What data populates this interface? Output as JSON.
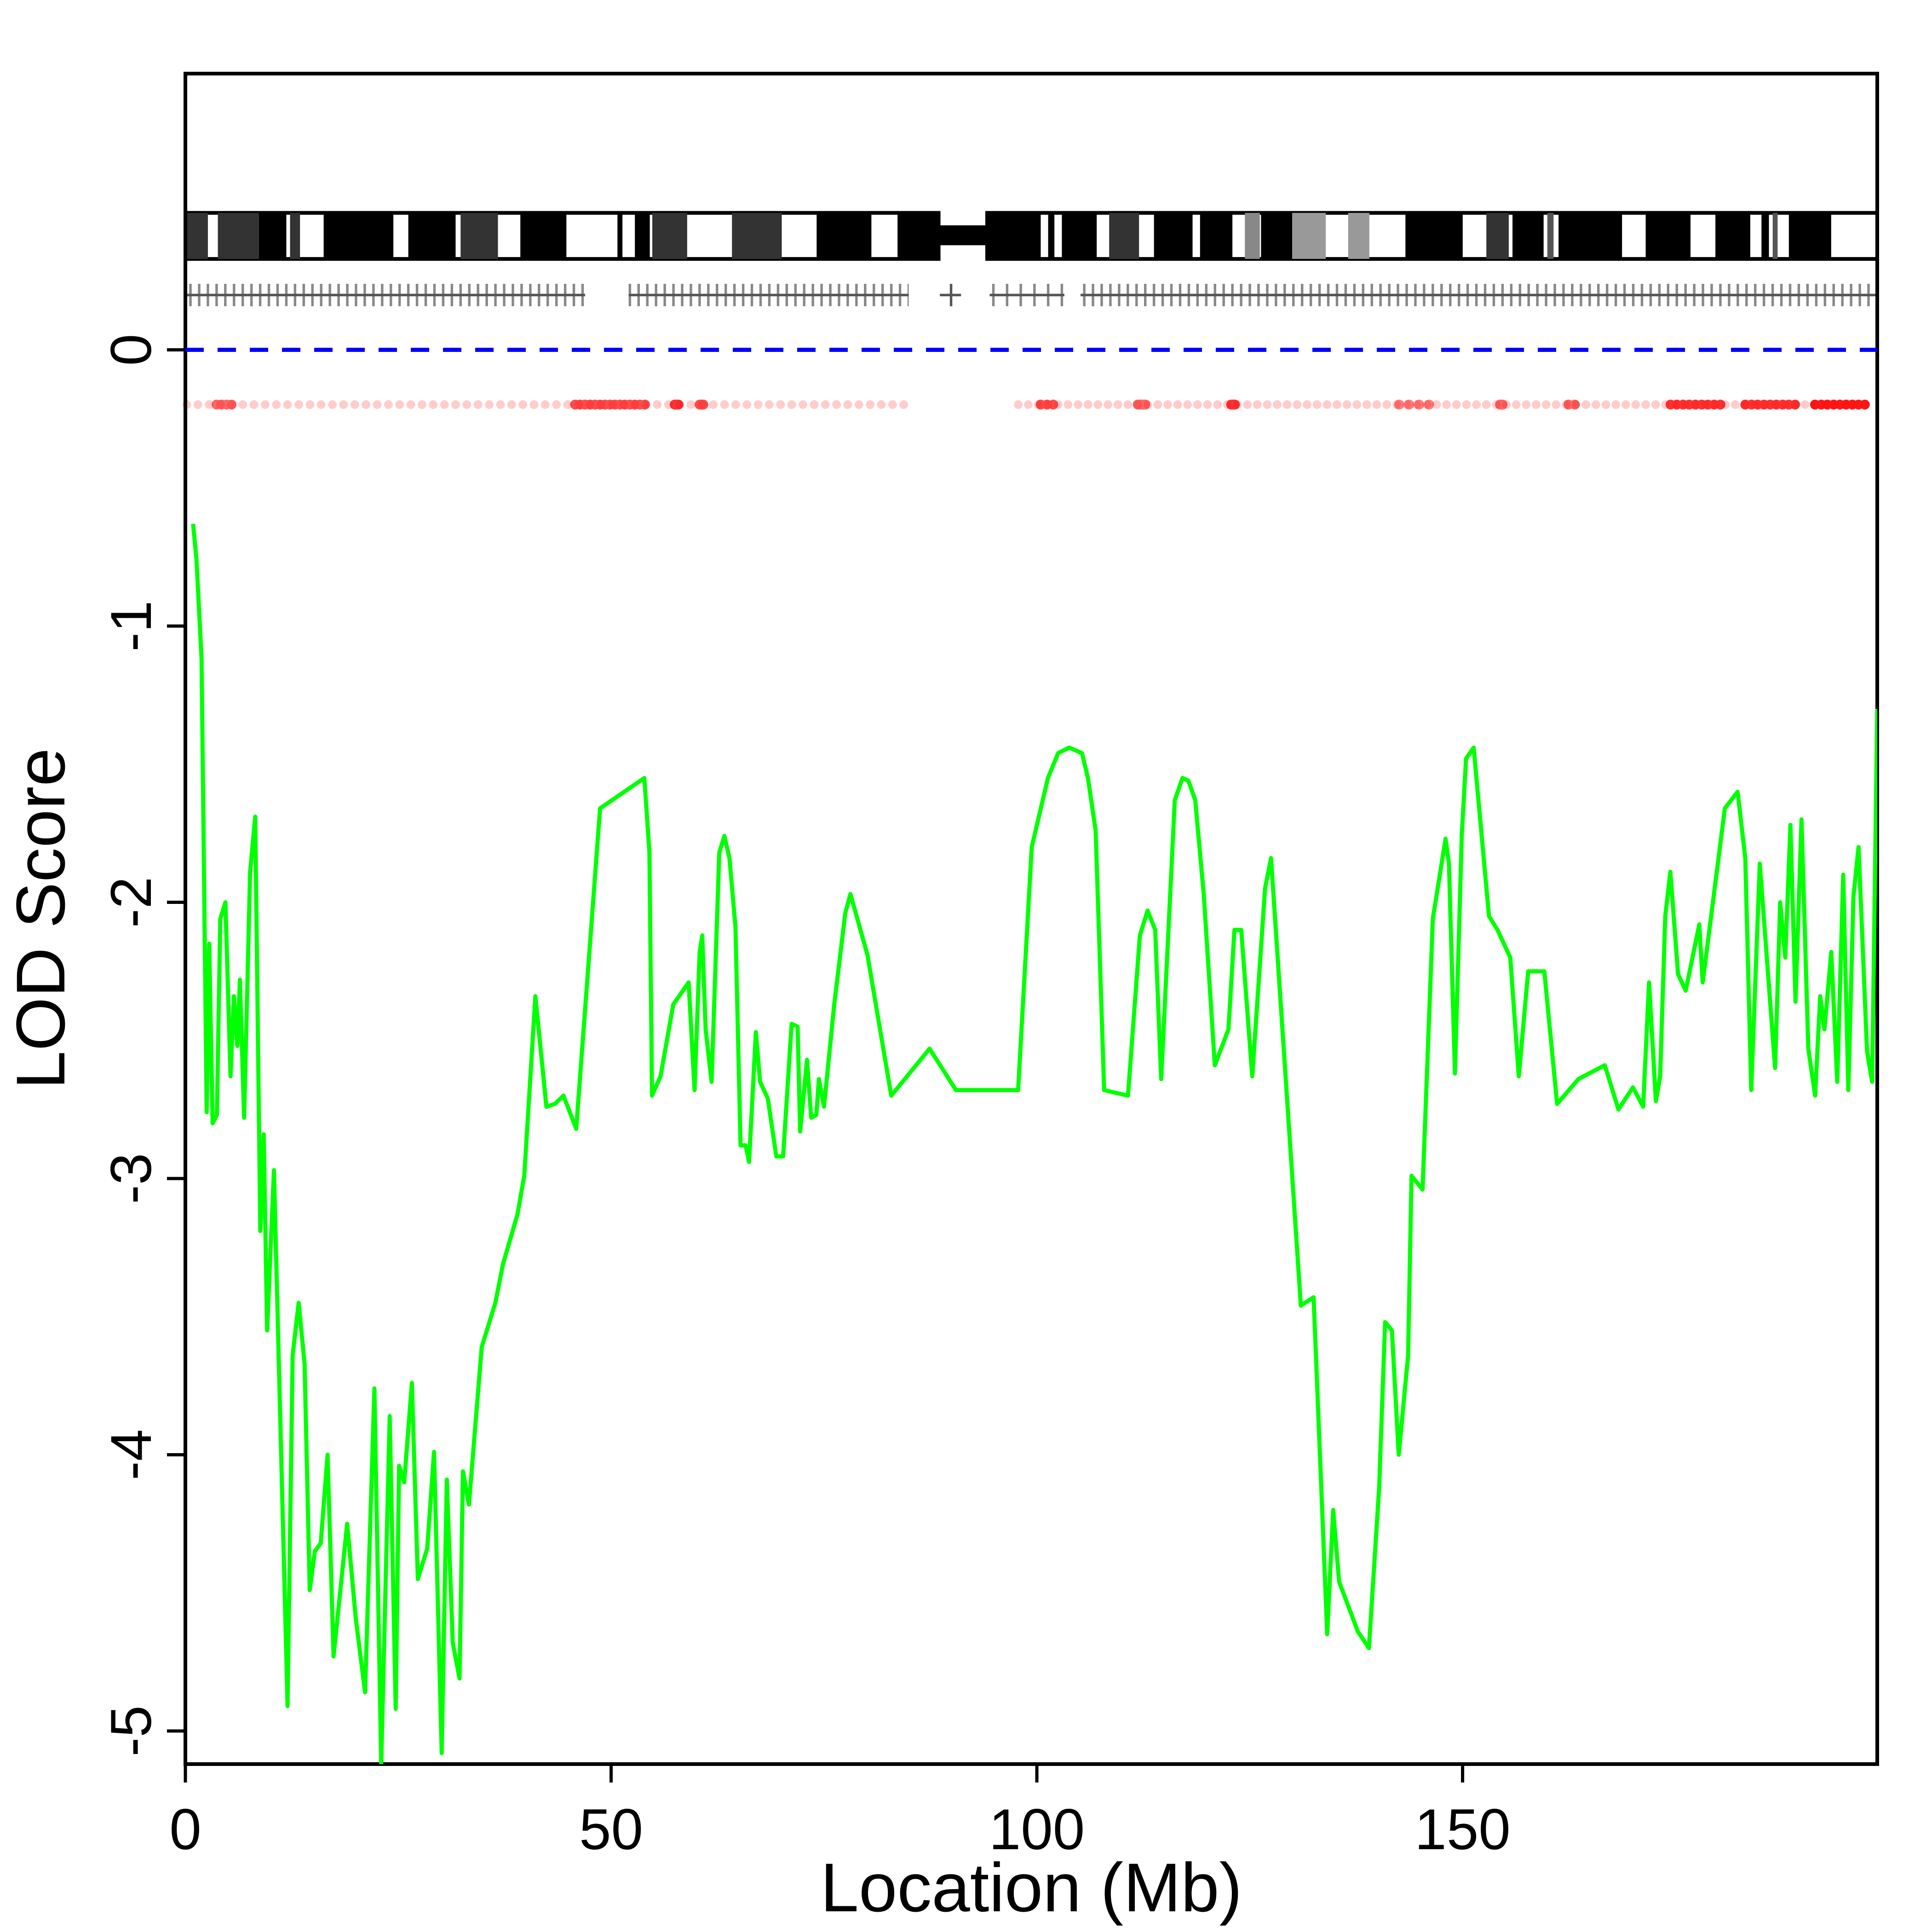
{
  "chart_data": {
    "type": "line",
    "xlabel": "Location (Mb)",
    "ylabel": "LOD Score",
    "xlim": [
      0,
      198.7
    ],
    "ylim": [
      -5.12,
      1.0
    ],
    "xticks": [
      0,
      50,
      100,
      150
    ],
    "yticks": [
      0,
      -1,
      -2,
      -3,
      -4,
      -5
    ],
    "hline": {
      "value": 0,
      "color": "#0000ff"
    },
    "x": [
      0.9,
      1.3,
      1.9,
      2.5,
      2.8,
      3.2,
      3.7,
      4.1,
      4.7,
      5.3,
      5.7,
      6.1,
      6.4,
      6.9,
      7.6,
      8.2,
      8.8,
      9.2,
      9.6,
      10.4,
      11.1,
      12.0,
      12.6,
      13.3,
      14.0,
      14.6,
      15.2,
      15.9,
      16.7,
      17.4,
      19.0,
      20.0,
      21.1,
      22.2,
      23.0,
      24.0,
      24.7,
      25.1,
      25.7,
      26.6,
      27.3,
      28.4,
      29.2,
      30.1,
      30.7,
      31.4,
      32.2,
      32.6,
      33.3,
      34.8,
      36.4,
      37.3,
      39.0,
      39.8,
      41.1,
      42.4,
      43.4,
      44.4,
      45.9,
      48.7,
      53.9,
      54.5,
      54.8,
      55.8,
      57.3,
      59.1,
      59.8,
      60.4,
      60.7,
      61.1,
      61.8,
      62.7,
      63.3,
      63.9,
      64.6,
      65.2,
      65.8,
      66.2,
      67.0,
      67.5,
      68.4,
      69.4,
      70.2,
      71.2,
      71.9,
      72.2,
      73.0,
      73.5,
      74.1,
      74.4,
      75.0,
      76.2,
      77.5,
      78.1,
      80.1,
      82.9,
      87.4,
      90.5,
      97.8,
      99.4,
      101.3,
      102.5,
      103.8,
      105.3,
      106.0,
      106.9,
      107.9,
      110.7,
      112.1,
      113.0,
      113.9,
      114.6,
      116.2,
      117.1,
      117.8,
      118.6,
      119.6,
      120.9,
      122.5,
      123.2,
      124.0,
      125.3,
      126.8,
      127.5,
      131.0,
      132.5,
      134.1,
      134.8,
      135.5,
      137.7,
      139.0,
      140.2,
      140.9,
      141.7,
      142.5,
      143.6,
      144.0,
      145.3,
      146.5,
      148.0,
      148.4,
      149.1,
      149.9,
      150.4,
      151.3,
      153.1,
      154.1,
      155.6,
      156.6,
      157.7,
      159.6,
      161.1,
      163.6,
      166.7,
      168.3,
      170.0,
      171.2,
      171.9,
      172.7,
      173.2,
      173.8,
      174.4,
      175.3,
      176.2,
      177.8,
      178.2,
      180.8,
      182.3,
      183.2,
      183.9,
      184.9,
      186.7,
      187.3,
      187.9,
      188.5,
      189.1,
      189.8,
      190.6,
      191.4,
      192.0,
      192.5,
      193.3,
      194.0,
      194.7,
      195.3,
      195.9,
      196.5,
      197.5,
      198.1,
      198.7
    ],
    "series": [
      {
        "color": "#00ff00",
        "values": [
          -0.63,
          -0.76,
          -1.12,
          -2.76,
          -2.15,
          -2.8,
          -2.77,
          -2.06,
          -2.0,
          -2.63,
          -2.34,
          -2.52,
          -2.28,
          -2.78,
          -1.89,
          -1.69,
          -3.19,
          -2.84,
          -3.55,
          -2.97,
          -3.82,
          -4.91,
          -3.64,
          -3.45,
          -3.67,
          -4.49,
          -4.35,
          -4.32,
          -4.0,
          -4.73,
          -4.25,
          -4.59,
          -4.86,
          -3.76,
          -5.12,
          -3.86,
          -4.92,
          -4.04,
          -4.1,
          -3.74,
          -4.45,
          -4.34,
          -3.99,
          -5.08,
          -4.09,
          -4.68,
          -4.81,
          -4.06,
          -4.18,
          -3.61,
          -3.45,
          -3.31,
          -3.13,
          -2.99,
          -2.34,
          -2.74,
          -2.73,
          -2.7,
          -2.82,
          -1.66,
          -1.55,
          -1.82,
          -2.7,
          -2.63,
          -2.37,
          -2.29,
          -2.68,
          -2.18,
          -2.12,
          -2.46,
          -2.65,
          -1.82,
          -1.76,
          -1.84,
          -2.09,
          -2.88,
          -2.88,
          -2.94,
          -2.47,
          -2.65,
          -2.71,
          -2.92,
          -2.92,
          -2.44,
          -2.45,
          -2.83,
          -2.57,
          -2.78,
          -2.77,
          -2.64,
          -2.74,
          -2.37,
          -2.04,
          -1.97,
          -2.19,
          -2.7,
          -2.53,
          -2.68,
          -2.68,
          -1.8,
          -1.55,
          -1.46,
          -1.44,
          -1.46,
          -1.55,
          -1.74,
          -2.68,
          -2.7,
          -2.12,
          -2.03,
          -2.1,
          -2.64,
          -1.63,
          -1.55,
          -1.56,
          -1.63,
          -1.97,
          -2.59,
          -2.46,
          -2.1,
          -2.1,
          -2.63,
          -1.95,
          -1.84,
          -3.46,
          -3.43,
          -4.65,
          -4.2,
          -4.46,
          -4.64,
          -4.7,
          -4.12,
          -3.52,
          -3.55,
          -4.0,
          -3.64,
          -2.99,
          -3.04,
          -2.06,
          -1.77,
          -1.86,
          -2.62,
          -1.76,
          -1.48,
          -1.44,
          -2.05,
          -2.1,
          -2.2,
          -2.63,
          -2.25,
          -2.25,
          -2.73,
          -2.64,
          -2.59,
          -2.75,
          -2.67,
          -2.74,
          -2.29,
          -2.72,
          -2.63,
          -2.05,
          -1.89,
          -2.26,
          -2.32,
          -2.08,
          -2.29,
          -1.66,
          -1.6,
          -1.84,
          -2.68,
          -1.86,
          -2.6,
          -2.0,
          -2.2,
          -1.72,
          -2.36,
          -1.7,
          -2.53,
          -2.7,
          -2.34,
          -2.46,
          -2.18,
          -2.65,
          -1.9,
          -2.68,
          -1.98,
          -1.8,
          -2.54,
          -2.65,
          -1.3
        ]
      }
    ]
  }
}
